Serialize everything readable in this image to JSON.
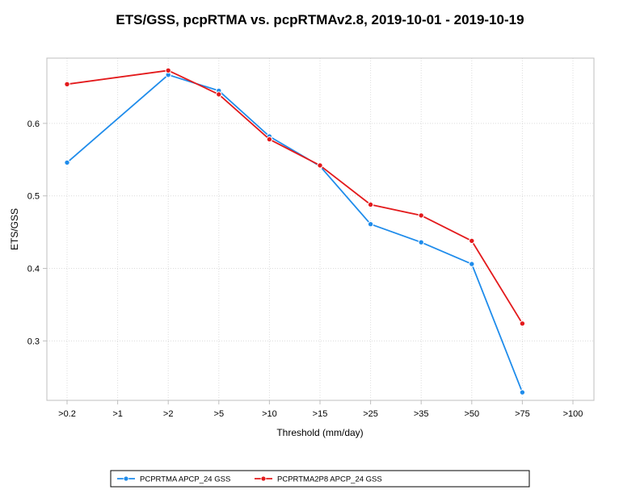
{
  "chart_data": {
    "type": "line",
    "title": "ETS/GSS, pcpRTMA vs. pcpRTMAv2.8, 2019-10-01 - 2019-10-19",
    "xlabel": "Threshold (mm/day)",
    "ylabel": "ETS/GSS",
    "categories": [
      ">0.2",
      ">1",
      ">2",
      ">5",
      ">10",
      ">15",
      ">25",
      ">35",
      ">50",
      ">75",
      ">100"
    ],
    "ylim": [
      0.218,
      0.69
    ],
    "yticks": [
      "0.3",
      "0.4",
      "0.5",
      "0.6"
    ],
    "grid": true,
    "legend_position": "bottom",
    "series": [
      {
        "name": "PCPRTMA APCP_24 GSS",
        "color": "#1f8ceb",
        "values": [
          0.546,
          null,
          0.667,
          0.645,
          0.582,
          0.541,
          0.461,
          0.436,
          0.406,
          0.229,
          null
        ]
      },
      {
        "name": "PCPRTMA2P8 APCP_24 GSS",
        "color": "#e31a1c",
        "values": [
          0.654,
          null,
          0.673,
          0.64,
          0.578,
          0.542,
          0.488,
          0.473,
          0.438,
          0.324,
          null
        ]
      }
    ]
  }
}
